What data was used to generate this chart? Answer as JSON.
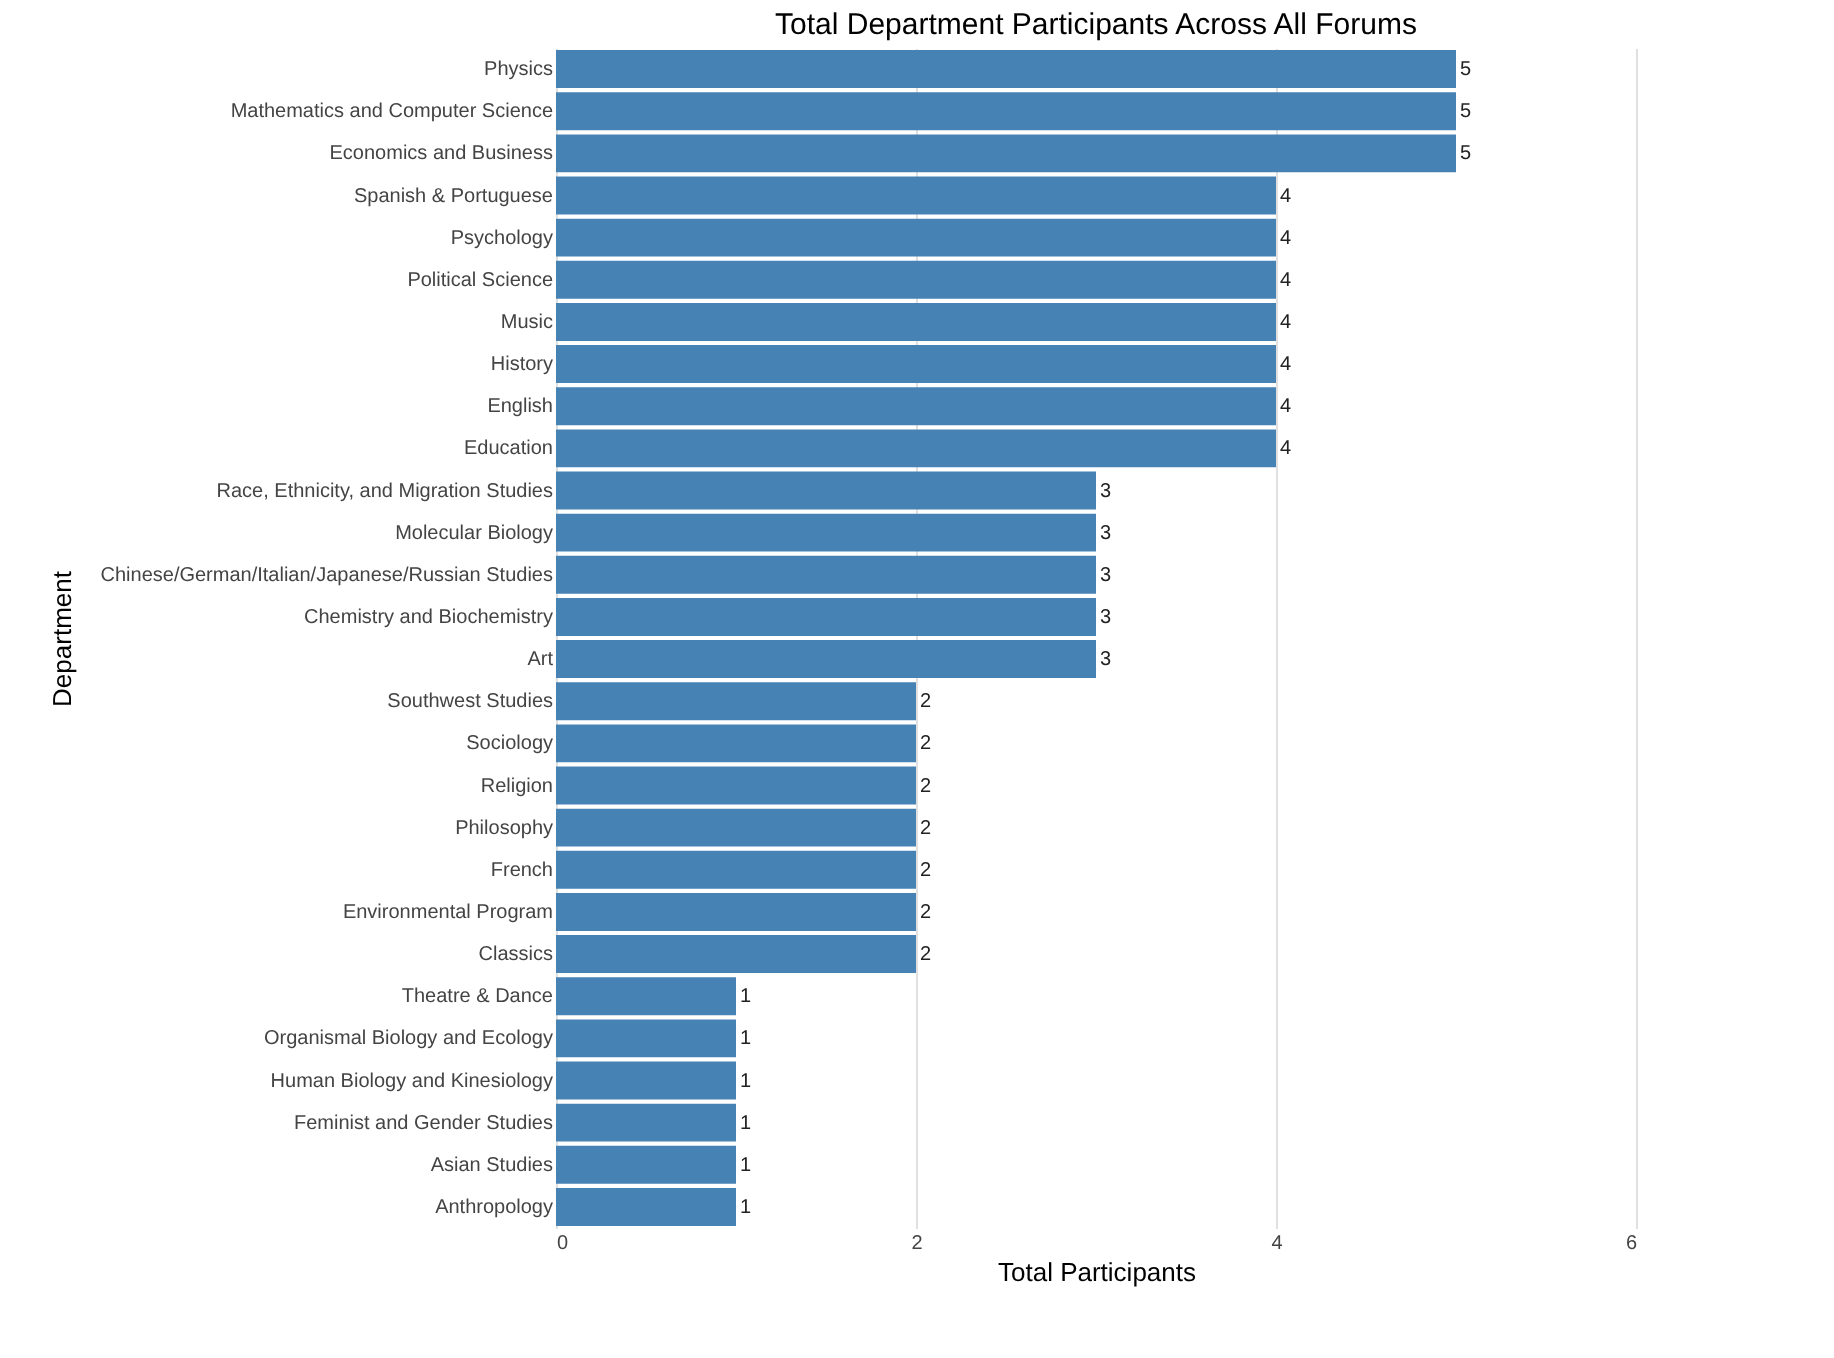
{
  "chart_data": {
    "type": "bar",
    "orientation": "horizontal",
    "title": "Total Department Participants Across All Forums",
    "xlabel": "Total Participants",
    "ylabel": "Department",
    "categories": [
      "Physics",
      "Mathematics and Computer Science",
      "Economics and Business",
      "Spanish & Portuguese",
      "Psychology",
      "Political Science",
      "Music",
      "History",
      "English",
      "Education",
      "Race, Ethnicity, and Migration Studies",
      "Molecular Biology",
      "Chinese/German/Italian/Japanese/Russian Studies",
      "Chemistry and Biochemistry",
      "Art",
      "Southwest Studies",
      "Sociology",
      "Religion",
      "Philosophy",
      "French",
      "Environmental Program",
      "Classics",
      "Theatre & Dance",
      "Organismal Biology and Ecology",
      "Human Biology and Kinesiology",
      "Feminist and Gender Studies",
      "Asian Studies",
      "Anthropology"
    ],
    "values": [
      5,
      5,
      5,
      4,
      4,
      4,
      4,
      4,
      4,
      4,
      3,
      3,
      3,
      3,
      3,
      2,
      2,
      2,
      2,
      2,
      2,
      2,
      1,
      1,
      1,
      1,
      1,
      1
    ],
    "color": "#4682b4",
    "xlim": [
      0,
      6
    ],
    "xticks": [
      0,
      2,
      4,
      6
    ],
    "grid": "x",
    "data_labels": true
  }
}
